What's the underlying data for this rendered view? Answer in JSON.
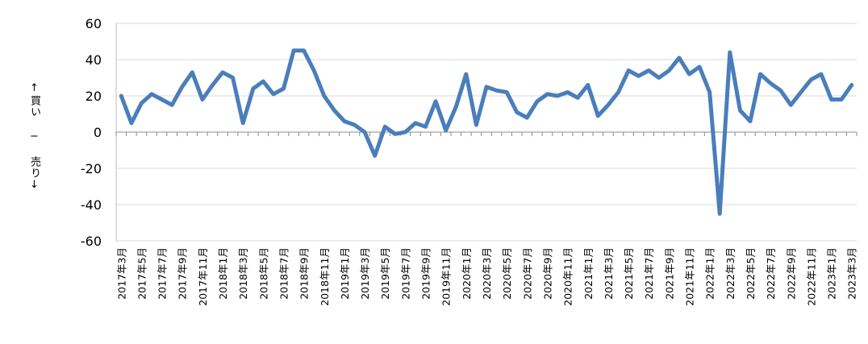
{
  "chart_data": {
    "type": "line",
    "title": "",
    "xlabel": "",
    "ylabel": "↑買い − 売り↓",
    "ylim": [
      -60,
      60
    ],
    "yticks": [
      60,
      40,
      20,
      0,
      -20,
      -40,
      -60
    ],
    "grid": true,
    "legend": "none",
    "line_color": "#4a7ebb",
    "x": [
      "2017年3月",
      "2017年4月",
      "2017年5月",
      "2017年6月",
      "2017年7月",
      "2017年8月",
      "2017年9月",
      "2017年10月",
      "2017年11月",
      "2017年12月",
      "2018年1月",
      "2018年2月",
      "2018年3月",
      "2018年4月",
      "2018年5月",
      "2018年6月",
      "2018年7月",
      "2018年8月",
      "2018年9月",
      "2018年10月",
      "2018年11月",
      "2018年12月",
      "2019年1月",
      "2019年2月",
      "2019年3月",
      "2019年4月",
      "2019年5月",
      "2019年6月",
      "2019年7月",
      "2019年8月",
      "2019年9月",
      "2019年10月",
      "2019年11月",
      "2019年12月",
      "2020年1月",
      "2020年2月",
      "2020年3月",
      "2020年4月",
      "2020年5月",
      "2020年6月",
      "2020年7月",
      "2020年8月",
      "2020年9月",
      "2020年10月",
      "2020年11月",
      "2020年12月",
      "2021年1月",
      "2021年2月",
      "2021年3月",
      "2021年4月",
      "2021年5月",
      "2021年6月",
      "2021年7月",
      "2021年8月",
      "2021年9月",
      "2021年10月",
      "2021年11月",
      "2021年12月",
      "2022年1月",
      "2022年2月",
      "2022年3月",
      "2022年4月",
      "2022年5月",
      "2022年6月",
      "2022年7月",
      "2022年8月",
      "2022年9月",
      "2022年10月",
      "2022年11月",
      "2022年12月",
      "2023年1月",
      "2023年2月",
      "2023年3月"
    ],
    "tick_labels": [
      "2017年3月",
      "2017年5月",
      "2017年7月",
      "2017年9月",
      "2017年11月",
      "2018年1月",
      "2018年3月",
      "2018年5月",
      "2018年7月",
      "2018年9月",
      "2018年11月",
      "2019年1月",
      "2019年3月",
      "2019年5月",
      "2019年7月",
      "2019年9月",
      "2019年11月",
      "2020年1月",
      "2020年3月",
      "2020年5月",
      "2020年7月",
      "2020年9月",
      "2020年11月",
      "2021年1月",
      "2021年3月",
      "2021年5月",
      "2021年7月",
      "2021年9月",
      "2021年11月",
      "2022年1月",
      "2022年3月",
      "2022年5月",
      "2022年7月",
      "2022年9月",
      "2022年11月",
      "2023年1月",
      "2023年3月"
    ],
    "values": [
      20,
      5,
      16,
      21,
      18,
      15,
      25,
      33,
      18,
      26,
      33,
      30,
      5,
      24,
      28,
      21,
      24,
      45,
      45,
      34,
      20,
      12,
      6,
      4,
      0,
      -13,
      3,
      -1,
      0,
      5,
      3,
      17,
      1,
      14,
      32,
      4,
      25,
      23,
      22,
      11,
      8,
      17,
      21,
      20,
      22,
      19,
      26,
      9,
      15,
      22,
      34,
      31,
      34,
      30,
      34,
      41,
      32,
      36,
      22,
      -45,
      44,
      12,
      6,
      32,
      27,
      23,
      15,
      22,
      29,
      32,
      18,
      18,
      26
    ]
  }
}
